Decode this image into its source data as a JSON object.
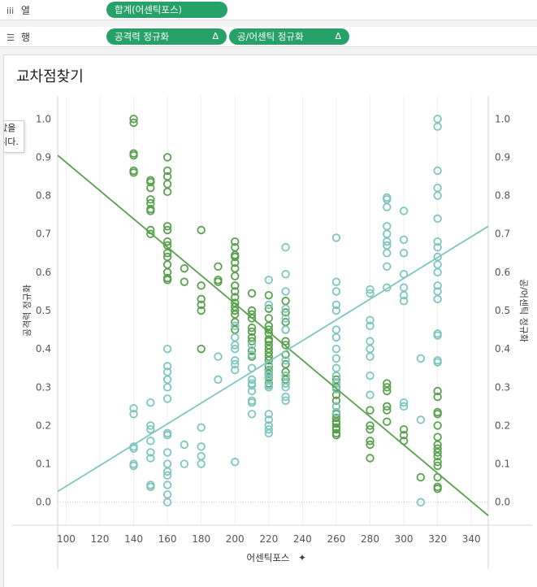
{
  "shelves": {
    "columns": {
      "icon": "iii",
      "label": "열",
      "pill": "합계(어센틱포스)"
    },
    "rows": {
      "icon": "☰",
      "label": "행",
      "pill1": "공격력 정규화",
      "pill2": "공/어센틱 정규화",
      "delta": "Δ"
    }
  },
  "sheet": {
    "title": "교차점찾기",
    "tooltip_lines": [
      "정값을",
      "습니다."
    ]
  },
  "colors": {
    "attack": "#59a14f",
    "ratio": "#7fc6c0",
    "pill": "#26a269"
  },
  "chart_data": {
    "type": "scatter",
    "title": "교차점찾기",
    "xlabel": "어센틱포스",
    "ylabel_left": "공격력 정규화",
    "ylabel_right": "공/어센틱 정규화",
    "xlim": [
      95,
      350
    ],
    "ylim": [
      -0.06,
      1.06
    ],
    "x_ticks": [
      100,
      120,
      140,
      160,
      180,
      200,
      220,
      240,
      260,
      280,
      300,
      320,
      340
    ],
    "y_ticks": [
      0.0,
      0.1,
      0.2,
      0.3,
      0.4,
      0.5,
      0.6,
      0.7,
      0.8,
      0.9,
      1.0
    ],
    "series": [
      {
        "name": "공격력 정규화",
        "color": "#59a14f",
        "trend": [
          [
            95,
            0.905
          ],
          [
            350,
            -0.035
          ]
        ],
        "points": [
          [
            140,
            1.0
          ],
          [
            140,
            0.99
          ],
          [
            140,
            0.91
          ],
          [
            140,
            0.905
          ],
          [
            140,
            0.865
          ],
          [
            140,
            0.86
          ],
          [
            150,
            0.84
          ],
          [
            150,
            0.835
          ],
          [
            150,
            0.82
          ],
          [
            150,
            0.79
          ],
          [
            150,
            0.78
          ],
          [
            150,
            0.765
          ],
          [
            150,
            0.76
          ],
          [
            150,
            0.71
          ],
          [
            150,
            0.7
          ],
          [
            160,
            0.9
          ],
          [
            160,
            0.865
          ],
          [
            160,
            0.85
          ],
          [
            160,
            0.83
          ],
          [
            160,
            0.81
          ],
          [
            160,
            0.72
          ],
          [
            160,
            0.71
          ],
          [
            160,
            0.68
          ],
          [
            160,
            0.67
          ],
          [
            160,
            0.65
          ],
          [
            160,
            0.64
          ],
          [
            160,
            0.62
          ],
          [
            160,
            0.6
          ],
          [
            160,
            0.585
          ],
          [
            160,
            0.58
          ],
          [
            170,
            0.61
          ],
          [
            170,
            0.575
          ],
          [
            180,
            0.71
          ],
          [
            180,
            0.565
          ],
          [
            180,
            0.53
          ],
          [
            180,
            0.515
          ],
          [
            180,
            0.5
          ],
          [
            180,
            0.4
          ],
          [
            190,
            0.615
          ],
          [
            190,
            0.58
          ],
          [
            190,
            0.575
          ],
          [
            200,
            0.68
          ],
          [
            200,
            0.665
          ],
          [
            200,
            0.645
          ],
          [
            200,
            0.64
          ],
          [
            200,
            0.625
          ],
          [
            200,
            0.61
          ],
          [
            200,
            0.59
          ],
          [
            200,
            0.565
          ],
          [
            200,
            0.55
          ],
          [
            200,
            0.535
          ],
          [
            200,
            0.52
          ],
          [
            200,
            0.51
          ],
          [
            200,
            0.5
          ],
          [
            200,
            0.49
          ],
          [
            200,
            0.47
          ],
          [
            200,
            0.45
          ],
          [
            210,
            0.545
          ],
          [
            210,
            0.5
          ],
          [
            210,
            0.49
          ],
          [
            210,
            0.48
          ],
          [
            210,
            0.455
          ],
          [
            210,
            0.445
          ],
          [
            210,
            0.43
          ],
          [
            210,
            0.42
          ],
          [
            210,
            0.395
          ],
          [
            210,
            0.38
          ],
          [
            220,
            0.54
          ],
          [
            220,
            0.505
          ],
          [
            220,
            0.48
          ],
          [
            220,
            0.46
          ],
          [
            220,
            0.45
          ],
          [
            220,
            0.44
          ],
          [
            220,
            0.425
          ],
          [
            220,
            0.42
          ],
          [
            220,
            0.41
          ],
          [
            220,
            0.4
          ],
          [
            220,
            0.39
          ],
          [
            220,
            0.38
          ],
          [
            220,
            0.37
          ],
          [
            220,
            0.355
          ],
          [
            220,
            0.345
          ],
          [
            220,
            0.335
          ],
          [
            220,
            0.325
          ],
          [
            220,
            0.31
          ],
          [
            230,
            0.525
          ],
          [
            230,
            0.495
          ],
          [
            230,
            0.47
          ],
          [
            230,
            0.45
          ],
          [
            230,
            0.42
          ],
          [
            230,
            0.41
          ],
          [
            230,
            0.385
          ],
          [
            230,
            0.36
          ],
          [
            230,
            0.34
          ],
          [
            230,
            0.33
          ],
          [
            230,
            0.32
          ],
          [
            230,
            0.31
          ],
          [
            260,
            0.33
          ],
          [
            260,
            0.32
          ],
          [
            260,
            0.31
          ],
          [
            260,
            0.3
          ],
          [
            260,
            0.28
          ],
          [
            260,
            0.265
          ],
          [
            260,
            0.25
          ],
          [
            260,
            0.23
          ],
          [
            260,
            0.22
          ],
          [
            260,
            0.21
          ],
          [
            260,
            0.205
          ],
          [
            260,
            0.195
          ],
          [
            260,
            0.19
          ],
          [
            260,
            0.18
          ],
          [
            260,
            0.175
          ],
          [
            280,
            0.24
          ],
          [
            280,
            0.2
          ],
          [
            280,
            0.19
          ],
          [
            280,
            0.16
          ],
          [
            280,
            0.15
          ],
          [
            280,
            0.115
          ],
          [
            290,
            0.31
          ],
          [
            290,
            0.3
          ],
          [
            290,
            0.29
          ],
          [
            290,
            0.25
          ],
          [
            290,
            0.24
          ],
          [
            290,
            0.21
          ],
          [
            300,
            0.19
          ],
          [
            300,
            0.175
          ],
          [
            300,
            0.16
          ],
          [
            310,
            0.065
          ],
          [
            320,
            0.29
          ],
          [
            320,
            0.275
          ],
          [
            320,
            0.235
          ],
          [
            320,
            0.23
          ],
          [
            320,
            0.2
          ],
          [
            320,
            0.17
          ],
          [
            320,
            0.15
          ],
          [
            320,
            0.14
          ],
          [
            320,
            0.13
          ],
          [
            320,
            0.12
          ],
          [
            320,
            0.105
          ],
          [
            320,
            0.095
          ],
          [
            320,
            0.065
          ],
          [
            320,
            0.04
          ],
          [
            320,
            0.035
          ]
        ]
      },
      {
        "name": "공/어센틱 정규화",
        "color": "#7fc6c0",
        "trend": [
          [
            95,
            0.028
          ],
          [
            350,
            0.72
          ]
        ],
        "points": [
          [
            140,
            0.245
          ],
          [
            140,
            0.23
          ],
          [
            140,
            0.145
          ],
          [
            140,
            0.14
          ],
          [
            140,
            0.1
          ],
          [
            140,
            0.095
          ],
          [
            150,
            0.26
          ],
          [
            150,
            0.2
          ],
          [
            150,
            0.19
          ],
          [
            150,
            0.16
          ],
          [
            150,
            0.13
          ],
          [
            150,
            0.115
          ],
          [
            150,
            0.045
          ],
          [
            150,
            0.04
          ],
          [
            160,
            0.4
          ],
          [
            160,
            0.355
          ],
          [
            160,
            0.34
          ],
          [
            160,
            0.32
          ],
          [
            160,
            0.3
          ],
          [
            160,
            0.27
          ],
          [
            160,
            0.18
          ],
          [
            160,
            0.175
          ],
          [
            160,
            0.13
          ],
          [
            160,
            0.1
          ],
          [
            160,
            0.08
          ],
          [
            160,
            0.07
          ],
          [
            160,
            0.045
          ],
          [
            160,
            0.02
          ],
          [
            160,
            0.0
          ],
          [
            170,
            0.15
          ],
          [
            170,
            0.1
          ],
          [
            180,
            0.195
          ],
          [
            180,
            0.145
          ],
          [
            180,
            0.12
          ],
          [
            180,
            0.1
          ],
          [
            190,
            0.38
          ],
          [
            190,
            0.32
          ],
          [
            200,
            0.46
          ],
          [
            200,
            0.43
          ],
          [
            200,
            0.41
          ],
          [
            200,
            0.4
          ],
          [
            200,
            0.37
          ],
          [
            200,
            0.36
          ],
          [
            200,
            0.345
          ],
          [
            200,
            0.105
          ],
          [
            210,
            0.41
          ],
          [
            210,
            0.385
          ],
          [
            210,
            0.35
          ],
          [
            210,
            0.32
          ],
          [
            210,
            0.31
          ],
          [
            210,
            0.305
          ],
          [
            210,
            0.29
          ],
          [
            210,
            0.265
          ],
          [
            210,
            0.26
          ],
          [
            210,
            0.23
          ],
          [
            220,
            0.58
          ],
          [
            220,
            0.515
          ],
          [
            220,
            0.36
          ],
          [
            220,
            0.34
          ],
          [
            220,
            0.33
          ],
          [
            220,
            0.32
          ],
          [
            220,
            0.305
          ],
          [
            220,
            0.3
          ],
          [
            220,
            0.23
          ],
          [
            220,
            0.215
          ],
          [
            220,
            0.2
          ],
          [
            220,
            0.19
          ],
          [
            220,
            0.18
          ],
          [
            230,
            0.665
          ],
          [
            230,
            0.595
          ],
          [
            230,
            0.55
          ],
          [
            230,
            0.505
          ],
          [
            230,
            0.48
          ],
          [
            230,
            0.45
          ],
          [
            230,
            0.37
          ],
          [
            230,
            0.33
          ],
          [
            230,
            0.31
          ],
          [
            230,
            0.3
          ],
          [
            230,
            0.275
          ],
          [
            230,
            0.265
          ],
          [
            260,
            0.69
          ],
          [
            260,
            0.575
          ],
          [
            260,
            0.55
          ],
          [
            260,
            0.515
          ],
          [
            260,
            0.5
          ],
          [
            260,
            0.45
          ],
          [
            260,
            0.43
          ],
          [
            260,
            0.4
          ],
          [
            260,
            0.375
          ],
          [
            260,
            0.35
          ],
          [
            260,
            0.33
          ],
          [
            260,
            0.31
          ],
          [
            260,
            0.295
          ],
          [
            260,
            0.25
          ],
          [
            260,
            0.235
          ],
          [
            280,
            0.555
          ],
          [
            280,
            0.545
          ],
          [
            280,
            0.475
          ],
          [
            280,
            0.46
          ],
          [
            280,
            0.42
          ],
          [
            280,
            0.4
          ],
          [
            280,
            0.38
          ],
          [
            280,
            0.33
          ],
          [
            280,
            0.28
          ],
          [
            290,
            0.795
          ],
          [
            290,
            0.79
          ],
          [
            290,
            0.77
          ],
          [
            290,
            0.72
          ],
          [
            290,
            0.7
          ],
          [
            290,
            0.68
          ],
          [
            290,
            0.67
          ],
          [
            290,
            0.65
          ],
          [
            290,
            0.615
          ],
          [
            290,
            0.56
          ],
          [
            300,
            0.76
          ],
          [
            300,
            0.685
          ],
          [
            300,
            0.65
          ],
          [
            300,
            0.595
          ],
          [
            300,
            0.56
          ],
          [
            300,
            0.54
          ],
          [
            300,
            0.525
          ],
          [
            300,
            0.26
          ],
          [
            300,
            0.25
          ],
          [
            310,
            0.375
          ],
          [
            310,
            0.215
          ],
          [
            310,
            0.0
          ],
          [
            320,
            1.0
          ],
          [
            320,
            0.98
          ],
          [
            320,
            0.865
          ],
          [
            320,
            0.82
          ],
          [
            320,
            0.8
          ],
          [
            320,
            0.74
          ],
          [
            320,
            0.68
          ],
          [
            320,
            0.665
          ],
          [
            320,
            0.64
          ],
          [
            320,
            0.62
          ],
          [
            320,
            0.6
          ],
          [
            320,
            0.565
          ],
          [
            320,
            0.55
          ],
          [
            320,
            0.53
          ],
          [
            320,
            0.44
          ],
          [
            320,
            0.435
          ],
          [
            320,
            0.37
          ],
          [
            320,
            0.365
          ]
        ]
      }
    ]
  }
}
